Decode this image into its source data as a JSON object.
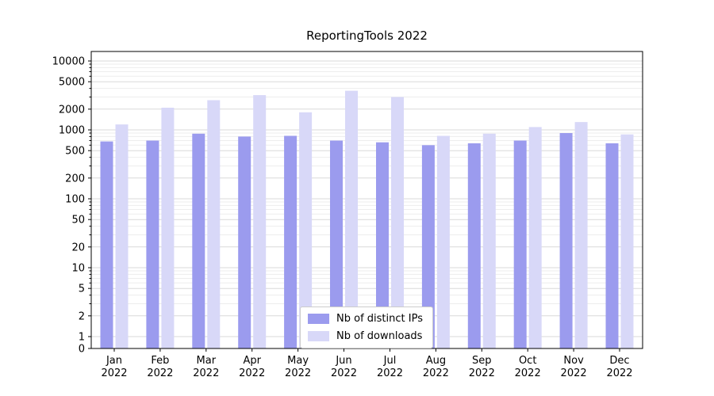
{
  "chart_data": {
    "type": "bar",
    "title": "ReportingTools 2022",
    "categories": [
      "Jan",
      "Feb",
      "Mar",
      "Apr",
      "May",
      "Jun",
      "Jul",
      "Aug",
      "Sep",
      "Oct",
      "Nov",
      "Dec"
    ],
    "year_label": "2022",
    "series": [
      {
        "name": "Nb of distinct IPs",
        "color": "#9b9bee",
        "values": [
          680,
          700,
          880,
          800,
          820,
          700,
          660,
          600,
          640,
          700,
          900,
          640
        ]
      },
      {
        "name": "Nb of downloads",
        "color": "#d8d8f8",
        "values": [
          1200,
          2100,
          2700,
          3200,
          1800,
          3700,
          3000,
          820,
          880,
          1100,
          1300,
          860
        ]
      }
    ],
    "yscale": "symlog",
    "yticks": [
      0,
      1,
      2,
      5,
      10,
      20,
      50,
      100,
      200,
      500,
      1000,
      2000,
      5000,
      10000
    ],
    "ylim": [
      0,
      14000
    ],
    "xlabel": "",
    "ylabel": "",
    "grid": true,
    "legend_position": "lower center"
  }
}
